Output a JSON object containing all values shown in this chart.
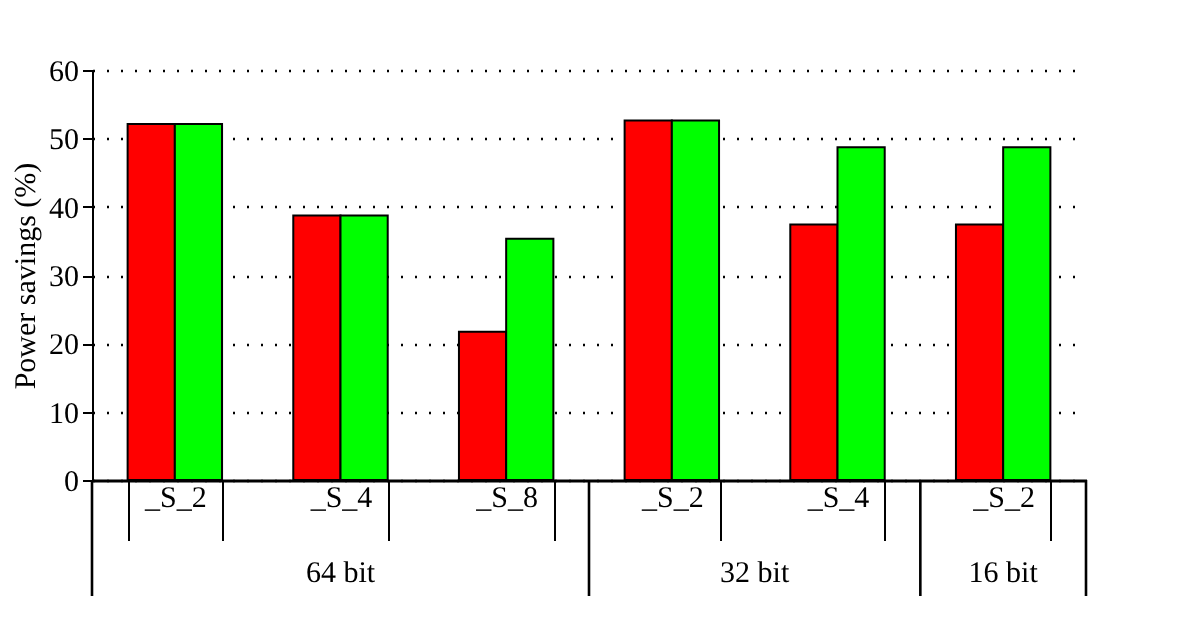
{
  "chart_data": {
    "type": "bar",
    "ylabel": "Power savings (%)",
    "categories": [
      "_S_2",
      "_S_4",
      "_S_8",
      "_S_2",
      "_S_4",
      "_S_2"
    ],
    "series": [
      {
        "color": "#ff0000",
        "values": [
          52.1,
          38.7,
          21.7,
          52.6,
          37.4,
          37.4
        ]
      },
      {
        "color": "#00ff00",
        "values": [
          52.1,
          38.7,
          35.3,
          52.6,
          48.7,
          48.7
        ]
      }
    ],
    "ylim": [
      0,
      60
    ],
    "yticks": [
      0,
      10,
      20,
      30,
      40,
      50,
      60
    ],
    "grid": "y",
    "annotations": [
      "64 bit",
      "32 bit",
      "16 bit"
    ]
  }
}
